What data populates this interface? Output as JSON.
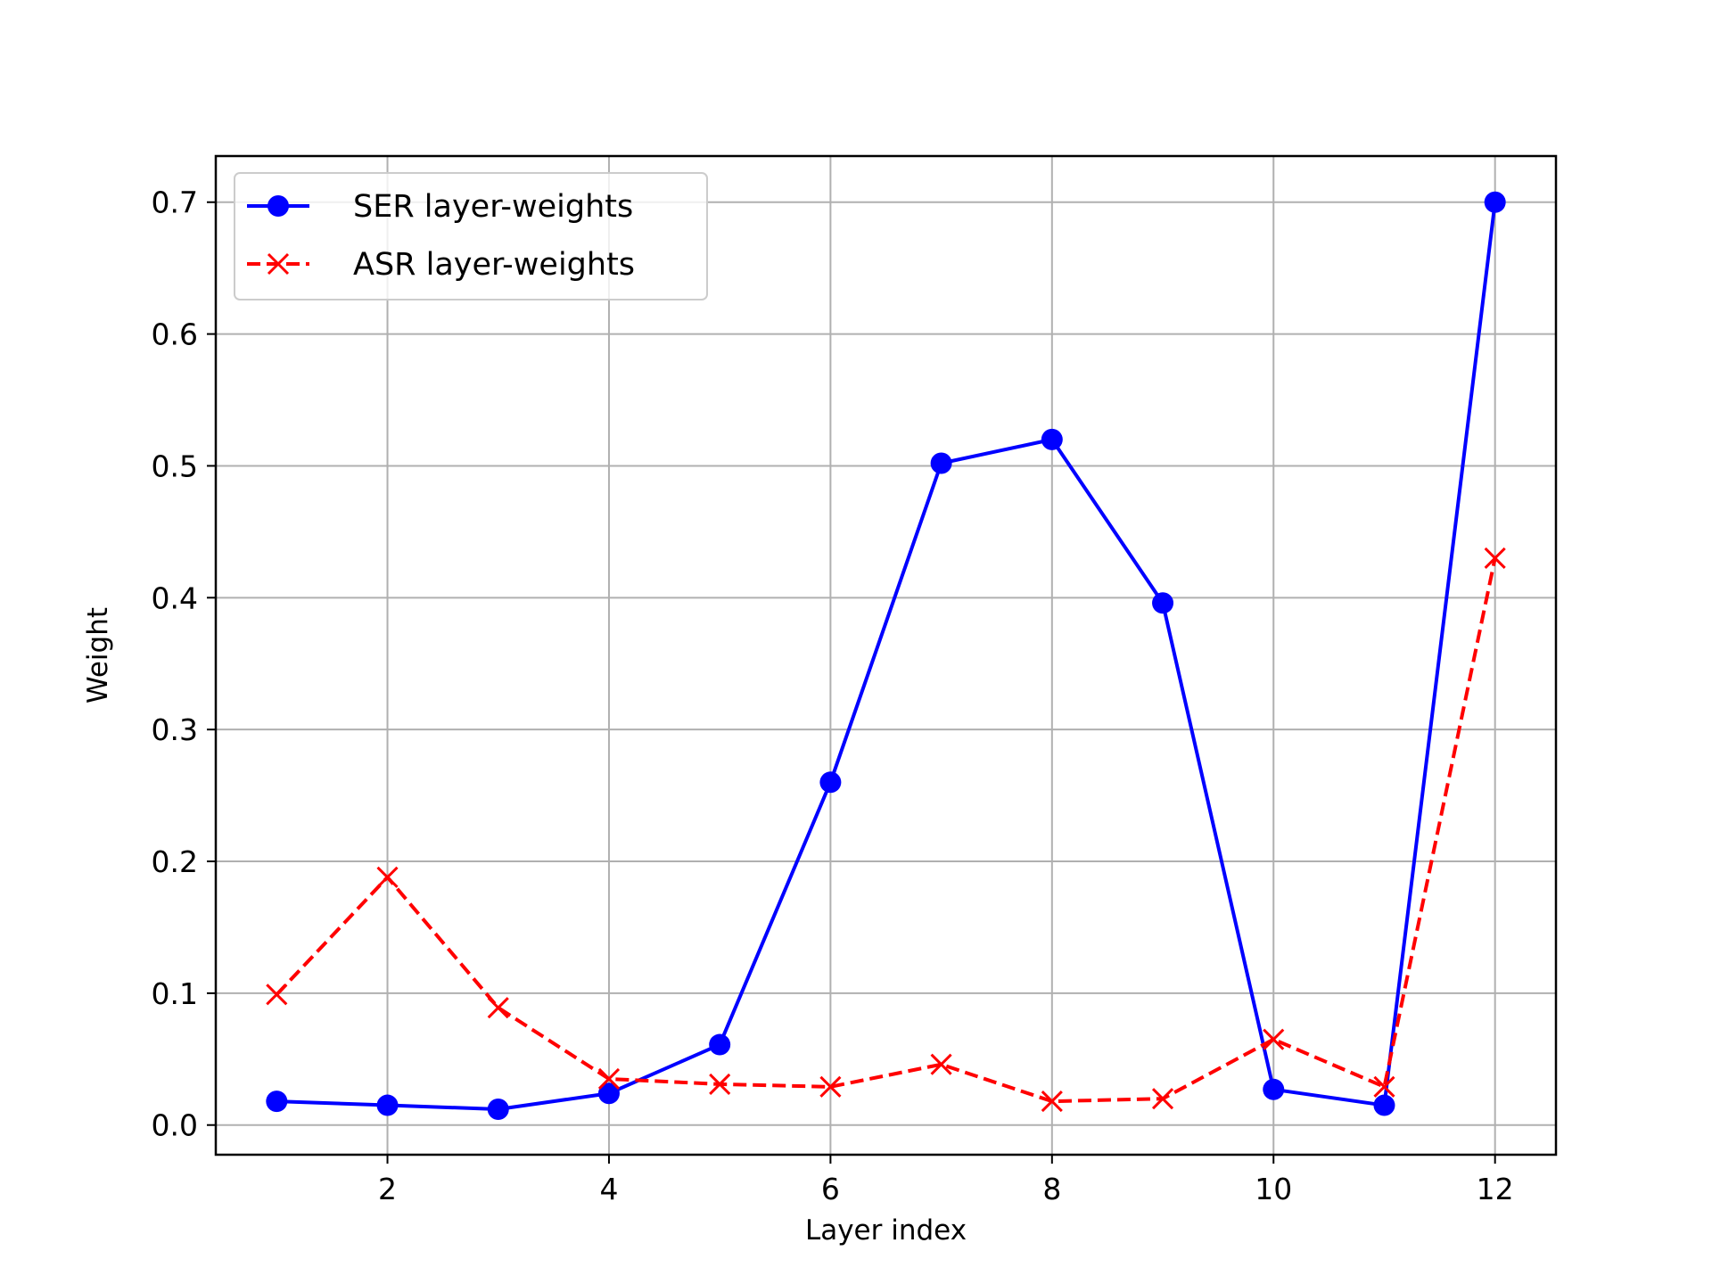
{
  "chart_data": {
    "type": "line",
    "title": "",
    "xlabel": "Layer index",
    "ylabel": "Weight",
    "xlim": [
      0.45,
      12.55
    ],
    "ylim": [
      -0.0225,
      0.735
    ],
    "xticks": [
      2,
      4,
      6,
      8,
      10,
      12
    ],
    "yticks": [
      0.0,
      0.1,
      0.2,
      0.3,
      0.4,
      0.5,
      0.6,
      0.7
    ],
    "xtick_labels": [
      "2",
      "4",
      "6",
      "8",
      "10",
      "12"
    ],
    "ytick_labels": [
      "0.0",
      "0.1",
      "0.2",
      "0.3",
      "0.4",
      "0.5",
      "0.6",
      "0.7"
    ],
    "grid": true,
    "legend_position": "upper-left",
    "x": [
      1,
      2,
      3,
      4,
      5,
      6,
      7,
      8,
      9,
      10,
      11,
      12
    ],
    "series": [
      {
        "name": "SER layer-weights",
        "values": [
          0.018,
          0.015,
          0.012,
          0.024,
          0.061,
          0.26,
          0.502,
          0.52,
          0.396,
          0.027,
          0.015,
          0.7
        ],
        "color": "#0000ff",
        "line_style": "solid",
        "marker": "circle"
      },
      {
        "name": "ASR layer-weights",
        "values": [
          0.099,
          0.188,
          0.089,
          0.035,
          0.031,
          0.029,
          0.046,
          0.018,
          0.02,
          0.065,
          0.029,
          0.43
        ],
        "color": "#ff0000",
        "line_style": "dashed",
        "marker": "x"
      }
    ]
  }
}
